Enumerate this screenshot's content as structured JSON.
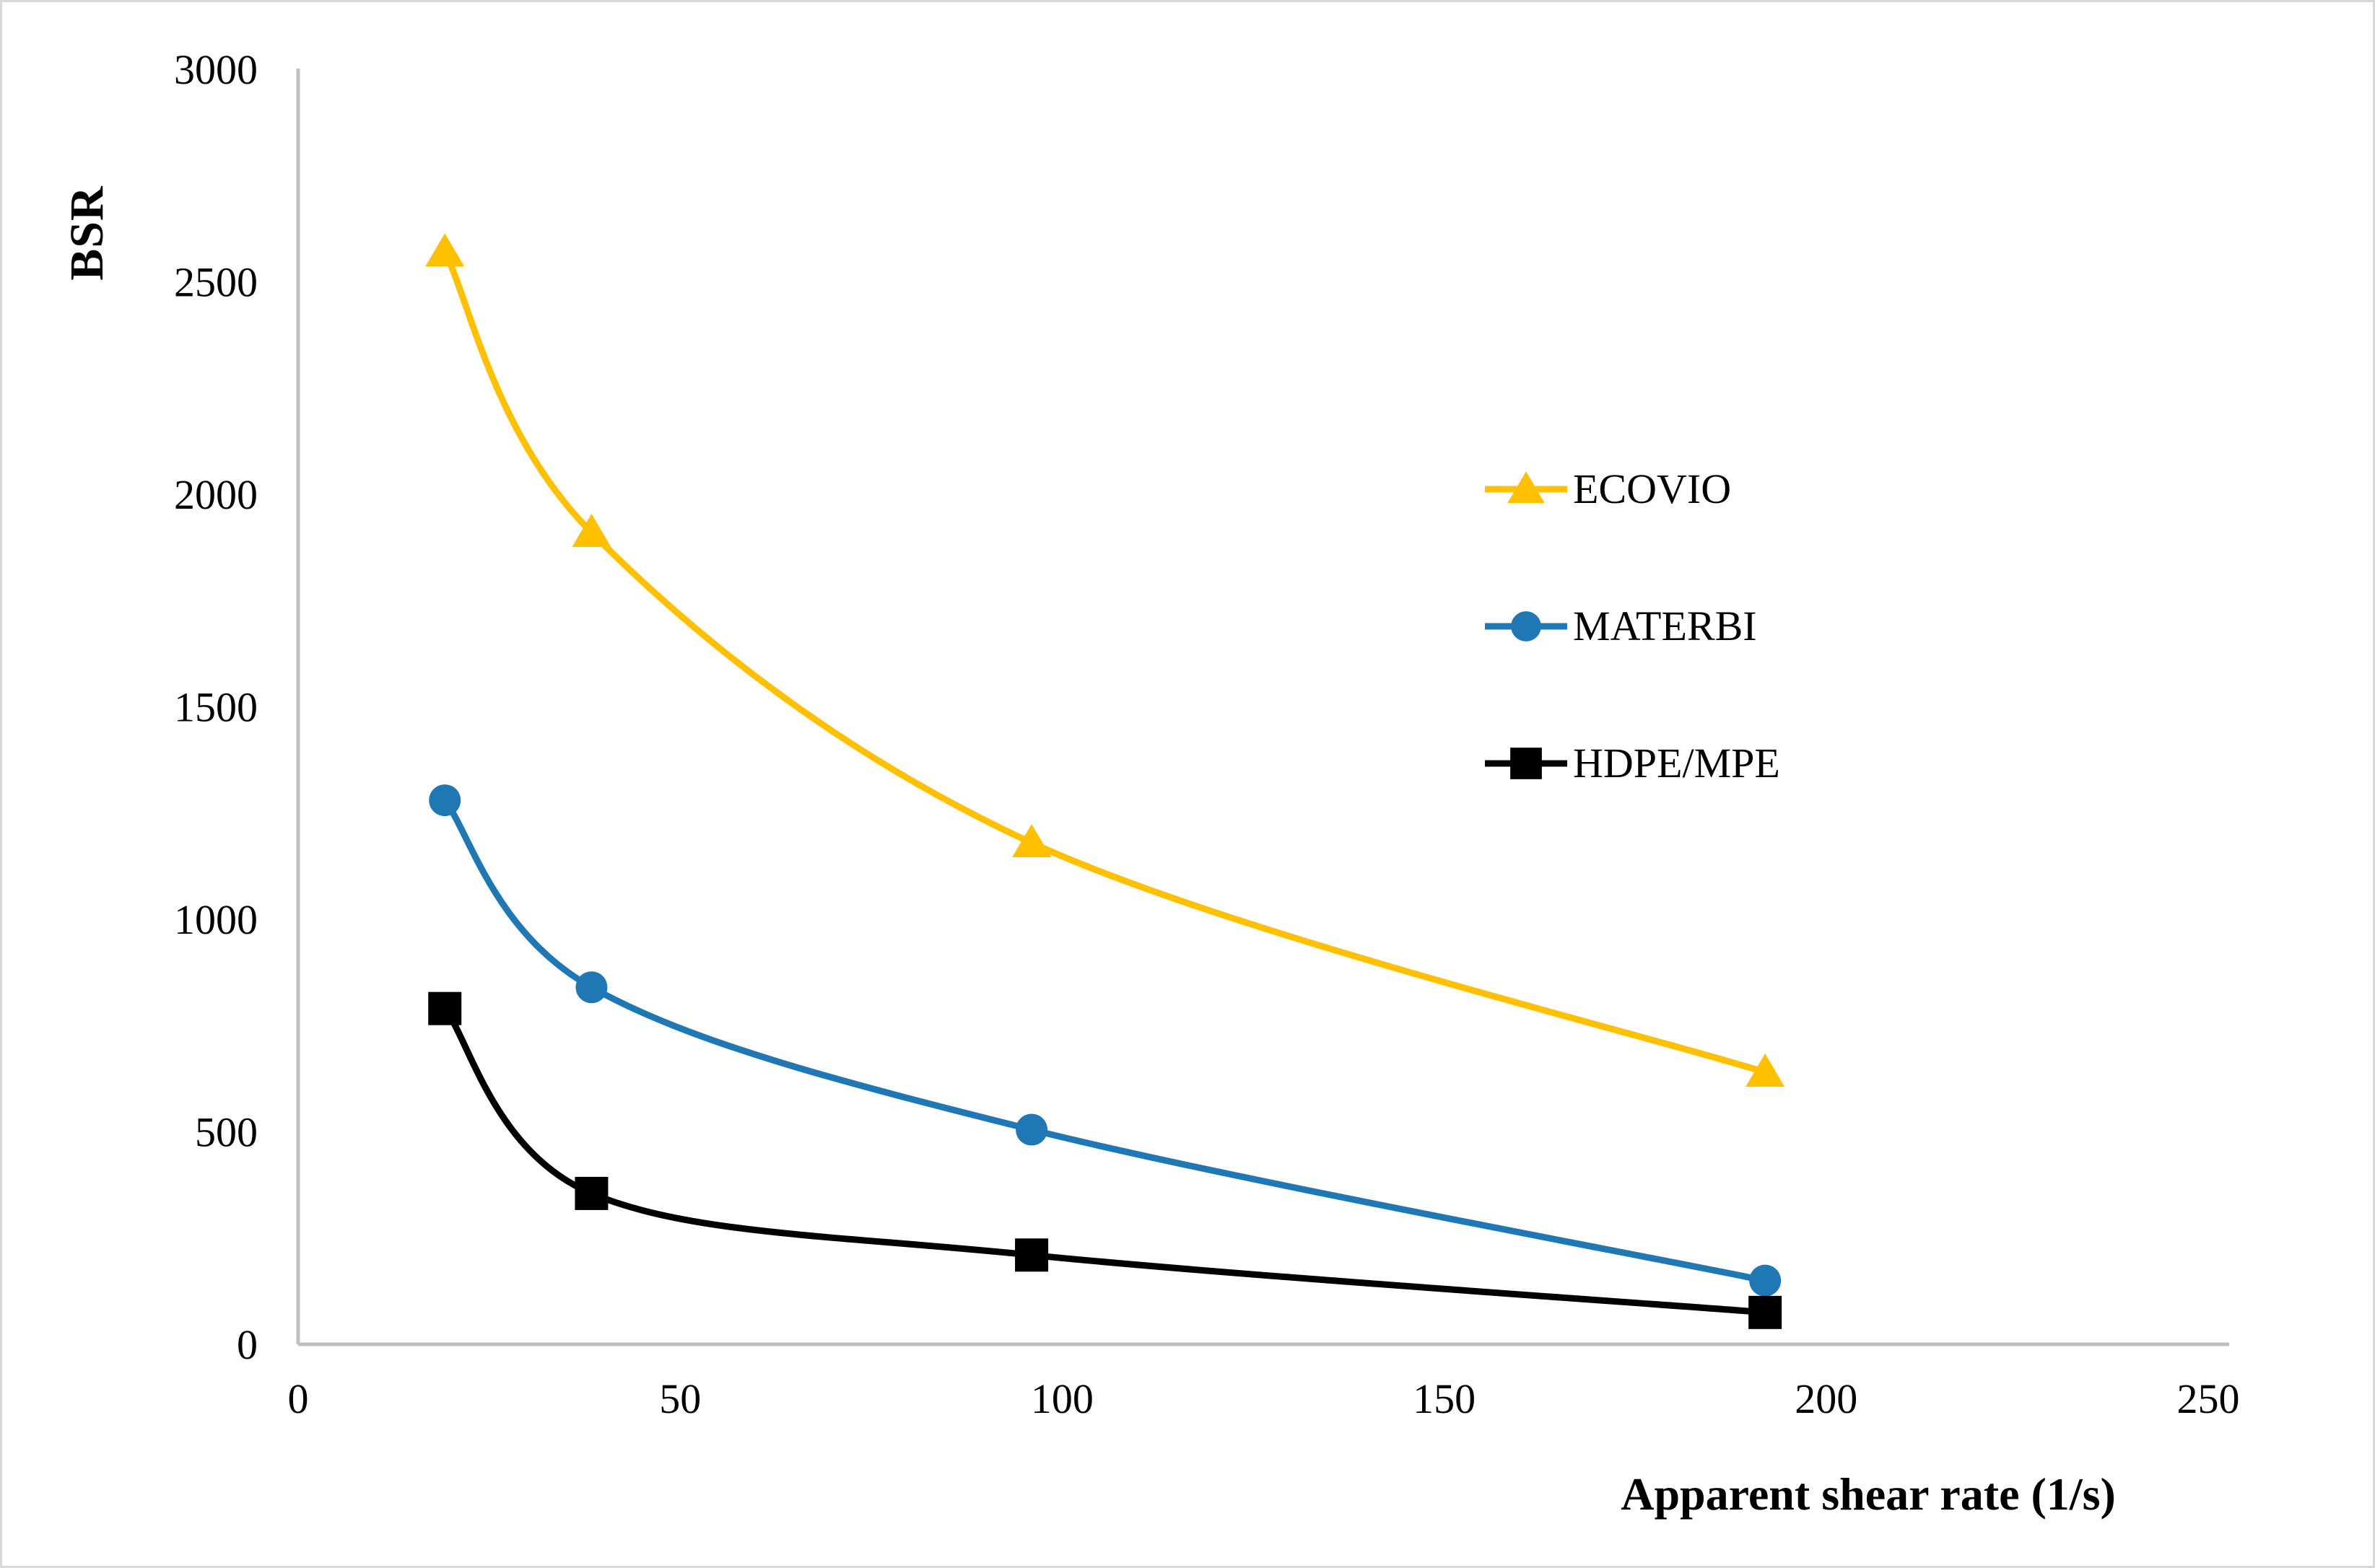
{
  "chart_data": {
    "type": "line",
    "title": "",
    "xlabel": "Apparent shear rate (1/s)",
    "ylabel": "BSR",
    "x": [
      19.2,
      38.4,
      96,
      192
    ],
    "series": [
      {
        "name": "ECOVIO",
        "marker": "triangle",
        "color": "#FFC000",
        "values": [
          2570,
          1910,
          1180,
          640
        ]
      },
      {
        "name": "MATERBI",
        "marker": "circle",
        "color": "#1F77B4",
        "values": [
          1280,
          840,
          505,
          150
        ]
      },
      {
        "name": "HDPE/MPE",
        "marker": "square",
        "color": "#000000",
        "values": [
          790,
          355,
          210,
          75
        ]
      }
    ],
    "xlim": [
      0,
      250
    ],
    "ylim": [
      0,
      3000
    ],
    "x_ticks": [
      "0",
      "50",
      "100",
      "150",
      "200",
      "250"
    ],
    "x_tick_values": [
      0,
      50,
      100,
      150,
      200,
      250
    ],
    "y_ticks": [
      "0",
      "500",
      "1000",
      "1500",
      "2000",
      "2500",
      "3000"
    ],
    "y_tick_values": [
      0,
      500,
      1000,
      1500,
      2000,
      2500,
      3000
    ],
    "grid": false,
    "line_style": "smooth",
    "legend_position": "middle-right",
    "axis_color": "#BFBFBF",
    "tick_label_color": "#000000"
  }
}
